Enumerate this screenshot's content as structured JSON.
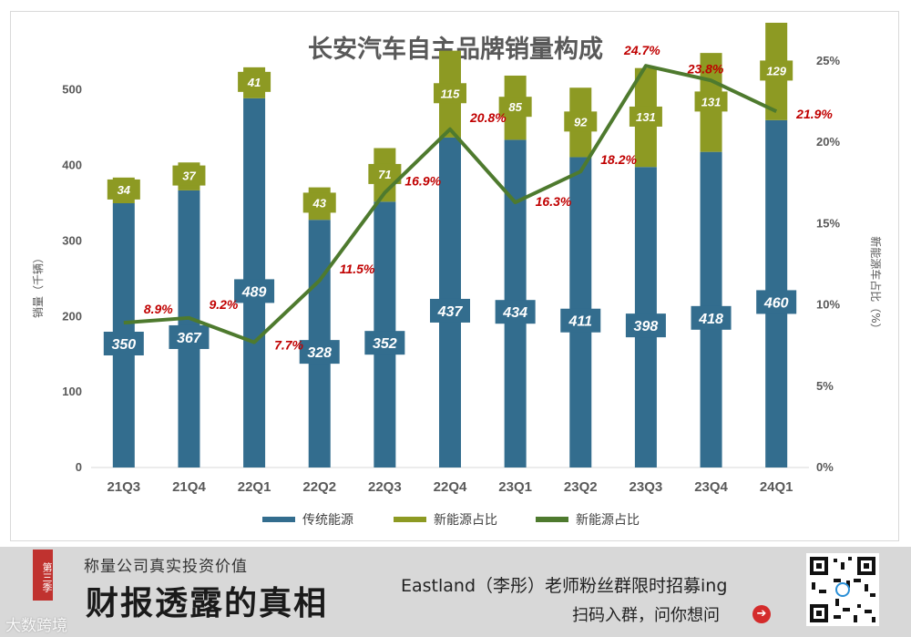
{
  "chart_data": {
    "type": "bar",
    "stacked": true,
    "title": "长安汽车自主品牌销量构成",
    "categories": [
      "21Q3",
      "21Q4",
      "22Q1",
      "22Q2",
      "22Q3",
      "22Q4",
      "23Q1",
      "23Q2",
      "23Q3",
      "23Q4",
      "24Q1"
    ],
    "series": [
      {
        "name": "传统能源",
        "kind": "bar",
        "axis": "left",
        "color": "#336d8e",
        "values": [
          350,
          367,
          489,
          328,
          352,
          437,
          434,
          411,
          398,
          418,
          460
        ]
      },
      {
        "name": "新能源占比",
        "kind": "bar",
        "axis": "left",
        "color": "#8d9a23",
        "values": [
          34,
          37,
          41,
          43,
          71,
          115,
          85,
          92,
          131,
          131,
          129
        ]
      },
      {
        "name": "新能源占比",
        "kind": "line",
        "axis": "right",
        "color": "#4e7a2e",
        "values": [
          8.9,
          9.2,
          7.7,
          11.5,
          16.9,
          20.8,
          16.3,
          18.2,
          24.7,
          23.8,
          21.9
        ]
      }
    ],
    "pct_labels": [
      "8.9%",
      "9.2%",
      "7.7%",
      "11.5%",
      "16.9%",
      "20.8%",
      "16.3%",
      "18.2%",
      "24.7%",
      "23.8%",
      "21.9%"
    ],
    "ylabel": "销量（千辆）",
    "y2label": "新能源车占比（%）",
    "ylim": [
      0,
      560
    ],
    "y2lim": [
      0,
      26
    ],
    "yticks": [
      "0",
      "100",
      "200",
      "300",
      "400",
      "500"
    ],
    "y2ticks": [
      "0%",
      "5%",
      "10%",
      "15%",
      "20%",
      "25%"
    ],
    "grid": false,
    "legend": "bottom"
  },
  "banner": {
    "season": "第三季",
    "slogan": "称量公司真实投资价值",
    "big_title": "财报透露的真相",
    "recruit": "Eastland（李彤）老师粉丝群限时招募ing",
    "scan": "扫码入群，问你想问",
    "arrow_icon": "➔",
    "watermark": "大数跨境"
  }
}
